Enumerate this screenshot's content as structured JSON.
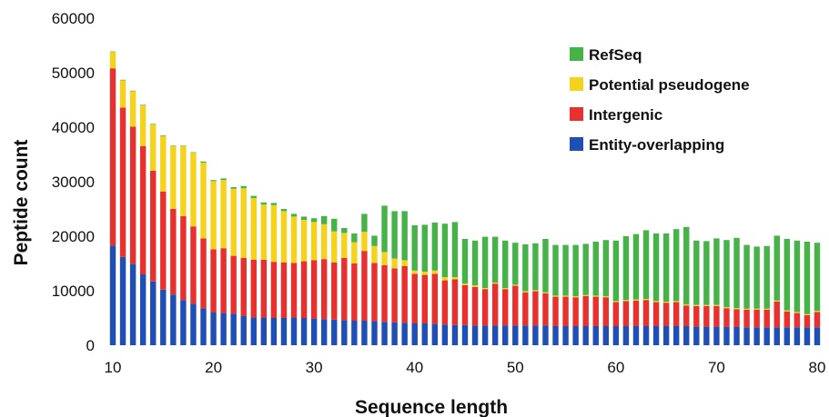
{
  "chart_data": {
    "type": "bar",
    "stacked": true,
    "title": "",
    "xlabel": "Sequence length",
    "ylabel": "Peptide count",
    "xlim": [
      10,
      80
    ],
    "ylim": [
      0,
      60000
    ],
    "x_ticks": [
      "10",
      "20",
      "30",
      "40",
      "50",
      "60",
      "70",
      "80"
    ],
    "y_ticks": [
      "0",
      "10000",
      "20000",
      "30000",
      "40000",
      "50000",
      "60000"
    ],
    "grid": false,
    "legend_position": "top-right",
    "x": [
      10,
      11,
      12,
      13,
      14,
      15,
      16,
      17,
      18,
      19,
      20,
      21,
      22,
      23,
      24,
      25,
      26,
      27,
      28,
      29,
      30,
      31,
      32,
      33,
      34,
      35,
      36,
      37,
      38,
      39,
      40,
      41,
      42,
      43,
      44,
      45,
      46,
      47,
      48,
      49,
      50,
      51,
      52,
      53,
      54,
      55,
      56,
      57,
      58,
      59,
      60,
      61,
      62,
      63,
      64,
      65,
      66,
      67,
      68,
      69,
      70,
      71,
      72,
      73,
      74,
      75,
      76,
      77,
      78,
      79,
      80
    ],
    "series": [
      {
        "name": "Entity-overlapping",
        "color": "#1f4fb5",
        "values": [
          18300,
          16200,
          14900,
          13000,
          11700,
          10200,
          9300,
          8300,
          7600,
          6800,
          6000,
          5900,
          5800,
          5400,
          5100,
          5100,
          5000,
          5000,
          5100,
          5000,
          4900,
          4800,
          4700,
          4600,
          4500,
          4500,
          4400,
          4300,
          4200,
          4100,
          4000,
          4000,
          3900,
          3800,
          3700,
          3700,
          3600,
          3600,
          3600,
          3600,
          3600,
          3600,
          3600,
          3600,
          3500,
          3500,
          3500,
          3500,
          3500,
          3500,
          3500,
          3500,
          3500,
          3500,
          3500,
          3500,
          3500,
          3500,
          3400,
          3400,
          3400,
          3400,
          3400,
          3300,
          3300,
          3300,
          3300,
          3300,
          3300,
          3300,
          3300
        ]
      },
      {
        "name": "Intergenic",
        "color": "#e8302e",
        "values": [
          32500,
          27400,
          25200,
          23500,
          20300,
          18000,
          15700,
          15400,
          14200,
          12800,
          11600,
          11900,
          10600,
          10600,
          10600,
          10600,
          10300,
          10200,
          10000,
          10400,
          10700,
          11000,
          10500,
          11400,
          10500,
          12800,
          10700,
          10400,
          9900,
          10400,
          9100,
          8900,
          9200,
          8100,
          8400,
          7300,
          7100,
          6700,
          7700,
          6700,
          7300,
          6100,
          6300,
          5900,
          5400,
          5400,
          5300,
          5500,
          5400,
          5300,
          4400,
          4600,
          4700,
          4800,
          4400,
          4300,
          4400,
          3800,
          3800,
          3800,
          3800,
          3400,
          3200,
          3200,
          3200,
          3200,
          4700,
          2900,
          2600,
          2200,
          2800
        ]
      },
      {
        "name": "Potential pseudogene",
        "color": "#f5d21c",
        "values": [
          3000,
          5000,
          6500,
          7500,
          8500,
          10200,
          11500,
          12800,
          13500,
          13900,
          12500,
          12500,
          12300,
          12800,
          11300,
          10100,
          10400,
          9400,
          8500,
          7600,
          7000,
          6400,
          5700,
          4600,
          3900,
          3500,
          3100,
          2400,
          1800,
          1100,
          600,
          600,
          600,
          600,
          400,
          300,
          300,
          200,
          200,
          200,
          200,
          200,
          200,
          200,
          200,
          200,
          200,
          200,
          200,
          200,
          200,
          200,
          200,
          200,
          200,
          200,
          200,
          200,
          200,
          200,
          200,
          200,
          200,
          200,
          200,
          200,
          200,
          200,
          200,
          200,
          200
        ]
      },
      {
        "name": "RefSeq",
        "color": "#46b348",
        "values": [
          100,
          100,
          100,
          100,
          100,
          100,
          100,
          100,
          100,
          200,
          200,
          300,
          300,
          400,
          400,
          400,
          400,
          400,
          500,
          600,
          700,
          1500,
          2300,
          900,
          1600,
          3300,
          1900,
          8500,
          8700,
          9000,
          8300,
          8600,
          8800,
          9800,
          10100,
          8200,
          8200,
          9400,
          8400,
          8700,
          7700,
          8600,
          8600,
          9800,
          9300,
          9300,
          9400,
          9400,
          9900,
          10300,
          11100,
          11700,
          12000,
          12600,
          12400,
          12500,
          13200,
          14200,
          11800,
          11700,
          12200,
          12300,
          12900,
          11700,
          11400,
          11500,
          11900,
          13100,
          13100,
          13300,
          12500
        ]
      }
    ]
  }
}
